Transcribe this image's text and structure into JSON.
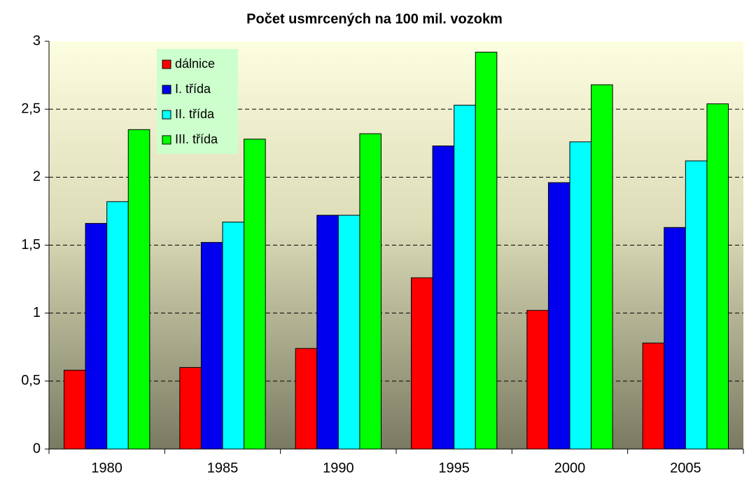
{
  "chart_data": {
    "type": "bar",
    "title": "Počet usmrcených na 100 mil. vozokm",
    "categories": [
      "1980",
      "1985",
      "1990",
      "1995",
      "2000",
      "2005"
    ],
    "series": [
      {
        "name": "dálnice",
        "color": "#ff0000",
        "values": [
          0.58,
          0.6,
          0.74,
          1.26,
          1.02,
          0.78
        ]
      },
      {
        "name": "I. třída",
        "color": "#0000ee",
        "values": [
          1.66,
          1.52,
          1.72,
          2.23,
          1.96,
          1.63
        ]
      },
      {
        "name": "II. třída",
        "color": "#00ffff",
        "values": [
          1.82,
          1.67,
          1.72,
          2.53,
          2.26,
          2.12
        ]
      },
      {
        "name": "III. třída",
        "color": "#00ff00",
        "values": [
          2.35,
          2.28,
          2.32,
          2.92,
          2.68,
          2.54
        ]
      }
    ],
    "ylim": [
      0,
      3
    ],
    "yticks": [
      0,
      {
        "value": 0.5,
        "label": "0,5"
      },
      1,
      {
        "value": 1.5,
        "label": "1,5"
      },
      2,
      {
        "value": 2.5,
        "label": "2,5"
      },
      3
    ],
    "grid": true,
    "legend": "top-left"
  }
}
